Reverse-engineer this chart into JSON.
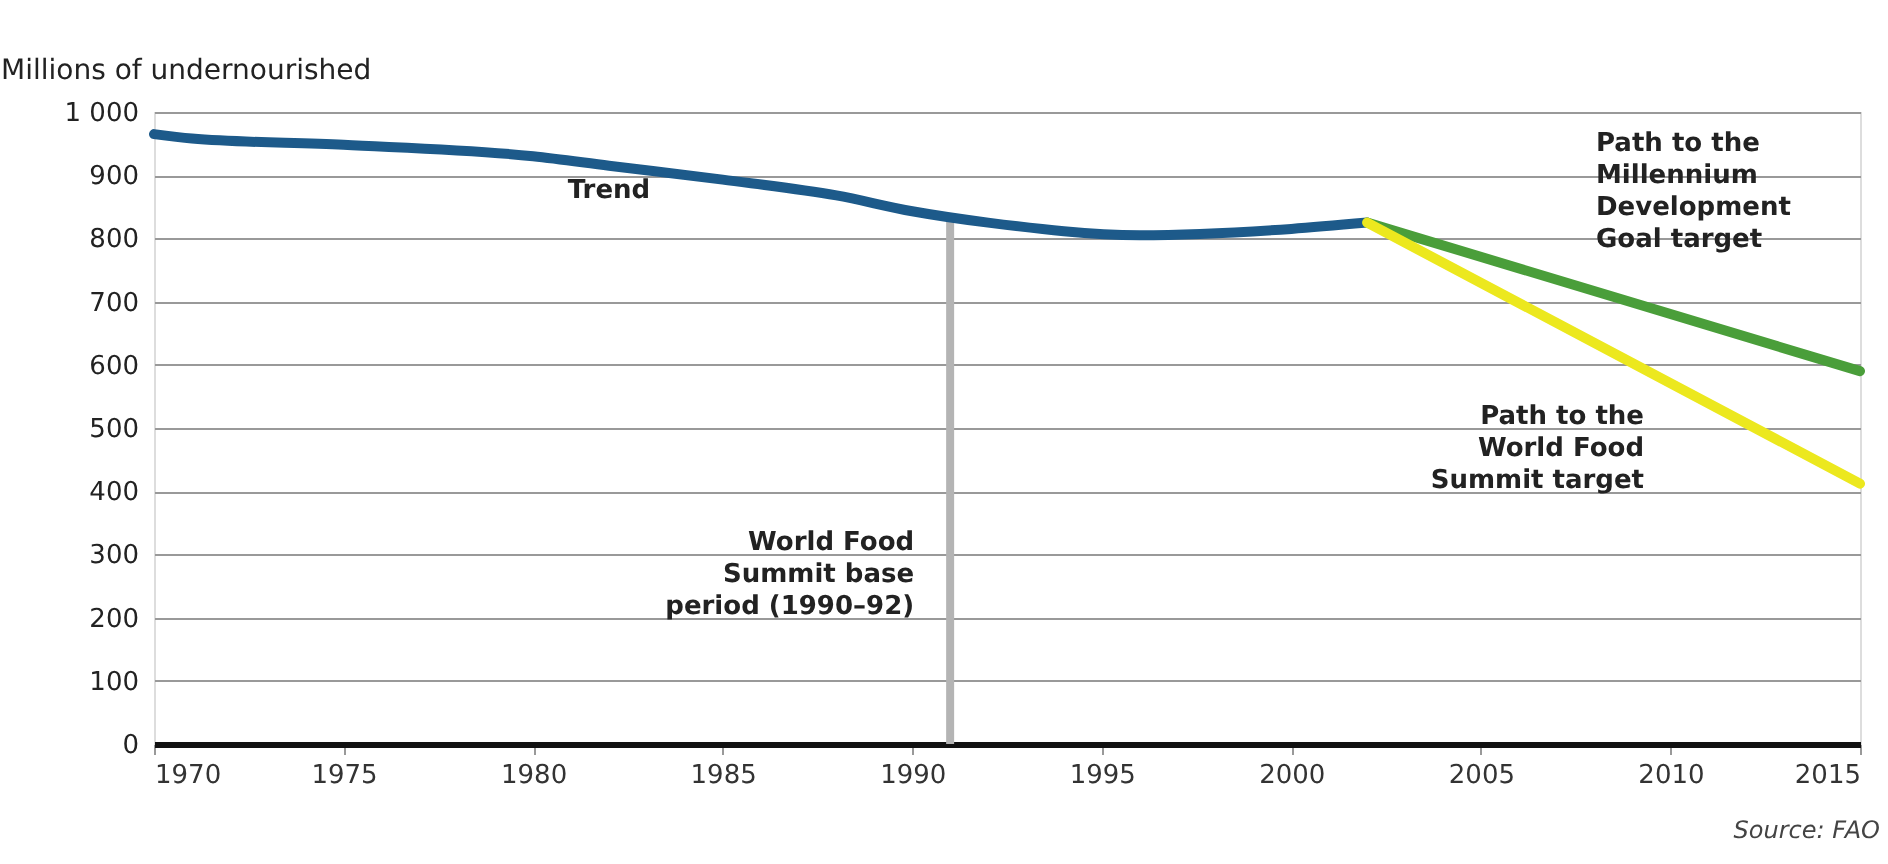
{
  "chart_data": {
    "type": "line",
    "ylabel": "Millions of undernourished",
    "xlim": [
      1970,
      2015
    ],
    "xticks": [
      1970,
      1975,
      1980,
      1985,
      1990,
      1995,
      2000,
      2005,
      2010,
      2015
    ],
    "ylim": [
      0,
      1000
    ],
    "yticks": [
      0,
      100,
      200,
      300,
      400,
      500,
      600,
      700,
      800,
      900,
      {
        "value": 1000,
        "label": "1 000"
      }
    ],
    "grid": "y",
    "legend": false,
    "line_style": "solid",
    "marker": "none",
    "series": [
      {
        "name": "Trend",
        "color": "#1d5a8a",
        "x": [
          1970,
          1971,
          1975,
          1980,
          1982,
          1985,
          1988,
          1990,
          1992,
          1996,
          2000,
          2002
        ],
        "values": [
          965,
          958,
          948,
          930,
          915,
          893,
          868,
          843,
          825,
          805,
          815,
          825
        ]
      },
      {
        "name": "Path to the\nMillennium\nDevelopment\nGoal target",
        "color": "#4a9e3a",
        "x": [
          2002,
          2015
        ],
        "values": [
          825,
          590
        ]
      },
      {
        "name": "Path to the\nWorld Food\nSummit target",
        "color": "#ece81e",
        "x": [
          2002,
          2015
        ],
        "values": [
          825,
          412
        ]
      }
    ],
    "ref_lines": [
      {
        "axis": "x",
        "value": 1991,
        "label": "World Food\nSummit base\nperiod (1990–92)",
        "color": "#b4b4b4"
      }
    ],
    "annotations": [
      "Source: FAO"
    ]
  }
}
